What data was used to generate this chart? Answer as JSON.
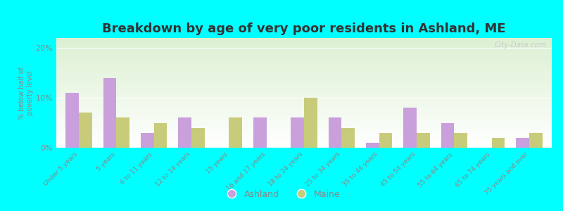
{
  "title": "Breakdown by age of very poor residents in Ashland, ME",
  "ylabel": "% below half of\npoverty level",
  "categories": [
    "Under 5 years",
    "5 years",
    "6 to 11 years",
    "12 to 14 years",
    "15 years",
    "16 and 17 years",
    "18 to 24 years",
    "25 to 34 years",
    "35 to 44 years",
    "45 to 54 years",
    "55 to 64 years",
    "65 to 74 years",
    "75 years and over"
  ],
  "ashland_values": [
    11.0,
    14.0,
    3.0,
    6.0,
    0.0,
    6.0,
    6.0,
    6.0,
    1.0,
    8.0,
    5.0,
    0.0,
    2.0
  ],
  "maine_values": [
    7.0,
    6.0,
    5.0,
    4.0,
    6.0,
    0.0,
    10.0,
    4.0,
    3.0,
    3.0,
    3.0,
    2.0,
    3.0
  ],
  "ashland_color": "#c9a0dc",
  "maine_color": "#c8cc7a",
  "background_color": "#00ffff",
  "ylim": [
    0,
    22
  ],
  "yticks": [
    0,
    10,
    20
  ],
  "ytick_labels": [
    "0%",
    "10%",
    "20%"
  ],
  "title_fontsize": 13,
  "bar_width": 0.35,
  "legend_ashland": "Ashland",
  "legend_maine": "Maine"
}
